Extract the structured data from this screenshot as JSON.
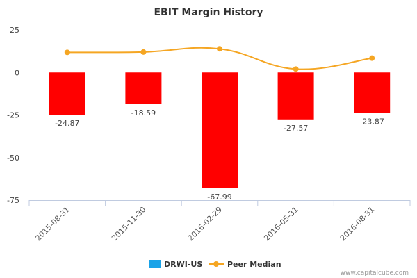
{
  "chart_data": {
    "type": "bar",
    "title": "EBIT Margin History",
    "categories": [
      "2015-08-31",
      "2015-11-30",
      "2016-02-29",
      "2016-05-31",
      "2016-08-31"
    ],
    "series": [
      {
        "name": "DRWI-US",
        "type": "bar",
        "values": [
          -24.87,
          -18.59,
          -67.99,
          -27.57,
          -23.87
        ],
        "data_labels": [
          "-24.87",
          "-18.59",
          "-67.99",
          "-27.57",
          "-23.87"
        ]
      },
      {
        "name": "Peer Median",
        "type": "line",
        "values": [
          11.8,
          12.0,
          13.9,
          2.0,
          8.4
        ]
      }
    ],
    "ylim": [
      -75,
      25
    ],
    "yticks": [
      25,
      0,
      -25,
      -50,
      -75
    ],
    "grid": false,
    "legend": "bottom-center",
    "colors": {
      "bars": "#ff0000",
      "legend_bar": "#1aa3e8",
      "line": "#f5a623",
      "axis": "#c0cbe0"
    }
  },
  "credit": "www.capitalcube.com"
}
